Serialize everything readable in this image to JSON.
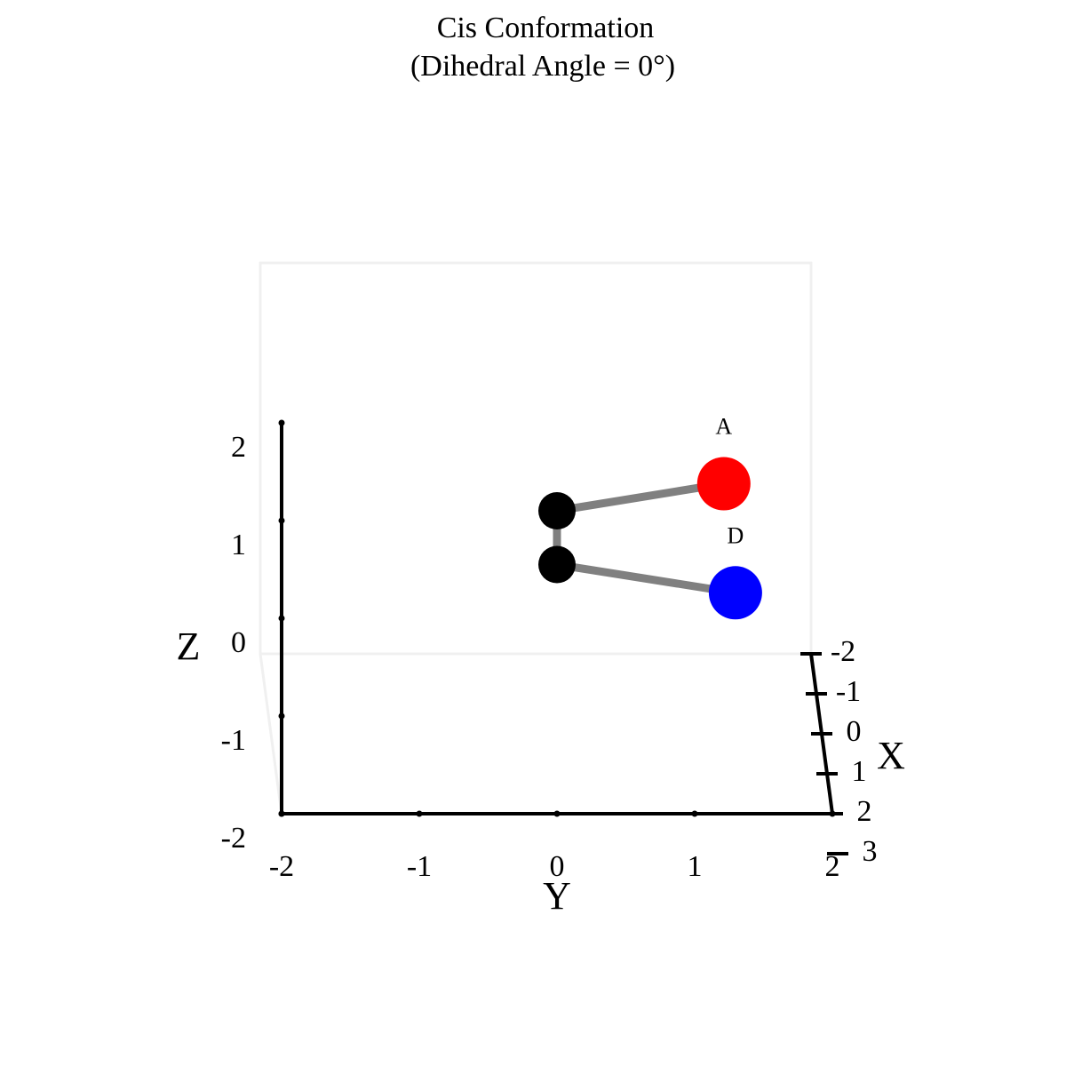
{
  "chart_data": {
    "type": "scatter3d",
    "title": "Cis Conformation",
    "subtitle": "(Dihedral Angle = 0°)",
    "x_label": "X",
    "y_label": "Y",
    "z_label": "Z",
    "xlim": [
      -2,
      2
    ],
    "ylim": [
      -2,
      2
    ],
    "zlim": [
      -2,
      2
    ],
    "xticks": [
      -2,
      -1,
      0,
      1,
      2,
      3
    ],
    "yticks": [
      -2,
      -1,
      0,
      1,
      2
    ],
    "zticks": [
      -2,
      -1,
      0,
      1,
      2
    ],
    "points": {
      "x": [
        2.3,
        2,
        2,
        1.9
      ],
      "y": [
        1.2,
        0,
        0,
        1.3
      ],
      "z": [
        1.5,
        1.1,
        0.55,
        0.22
      ],
      "colors": [
        "#ff0000",
        "#000000",
        "#000000",
        "#0000ff"
      ],
      "labels": [
        "A",
        null,
        null,
        "D"
      ]
    },
    "bonds": [
      [
        0,
        1
      ],
      [
        1,
        2
      ],
      [
        2,
        3
      ]
    ],
    "bond_color": "#808080"
  }
}
